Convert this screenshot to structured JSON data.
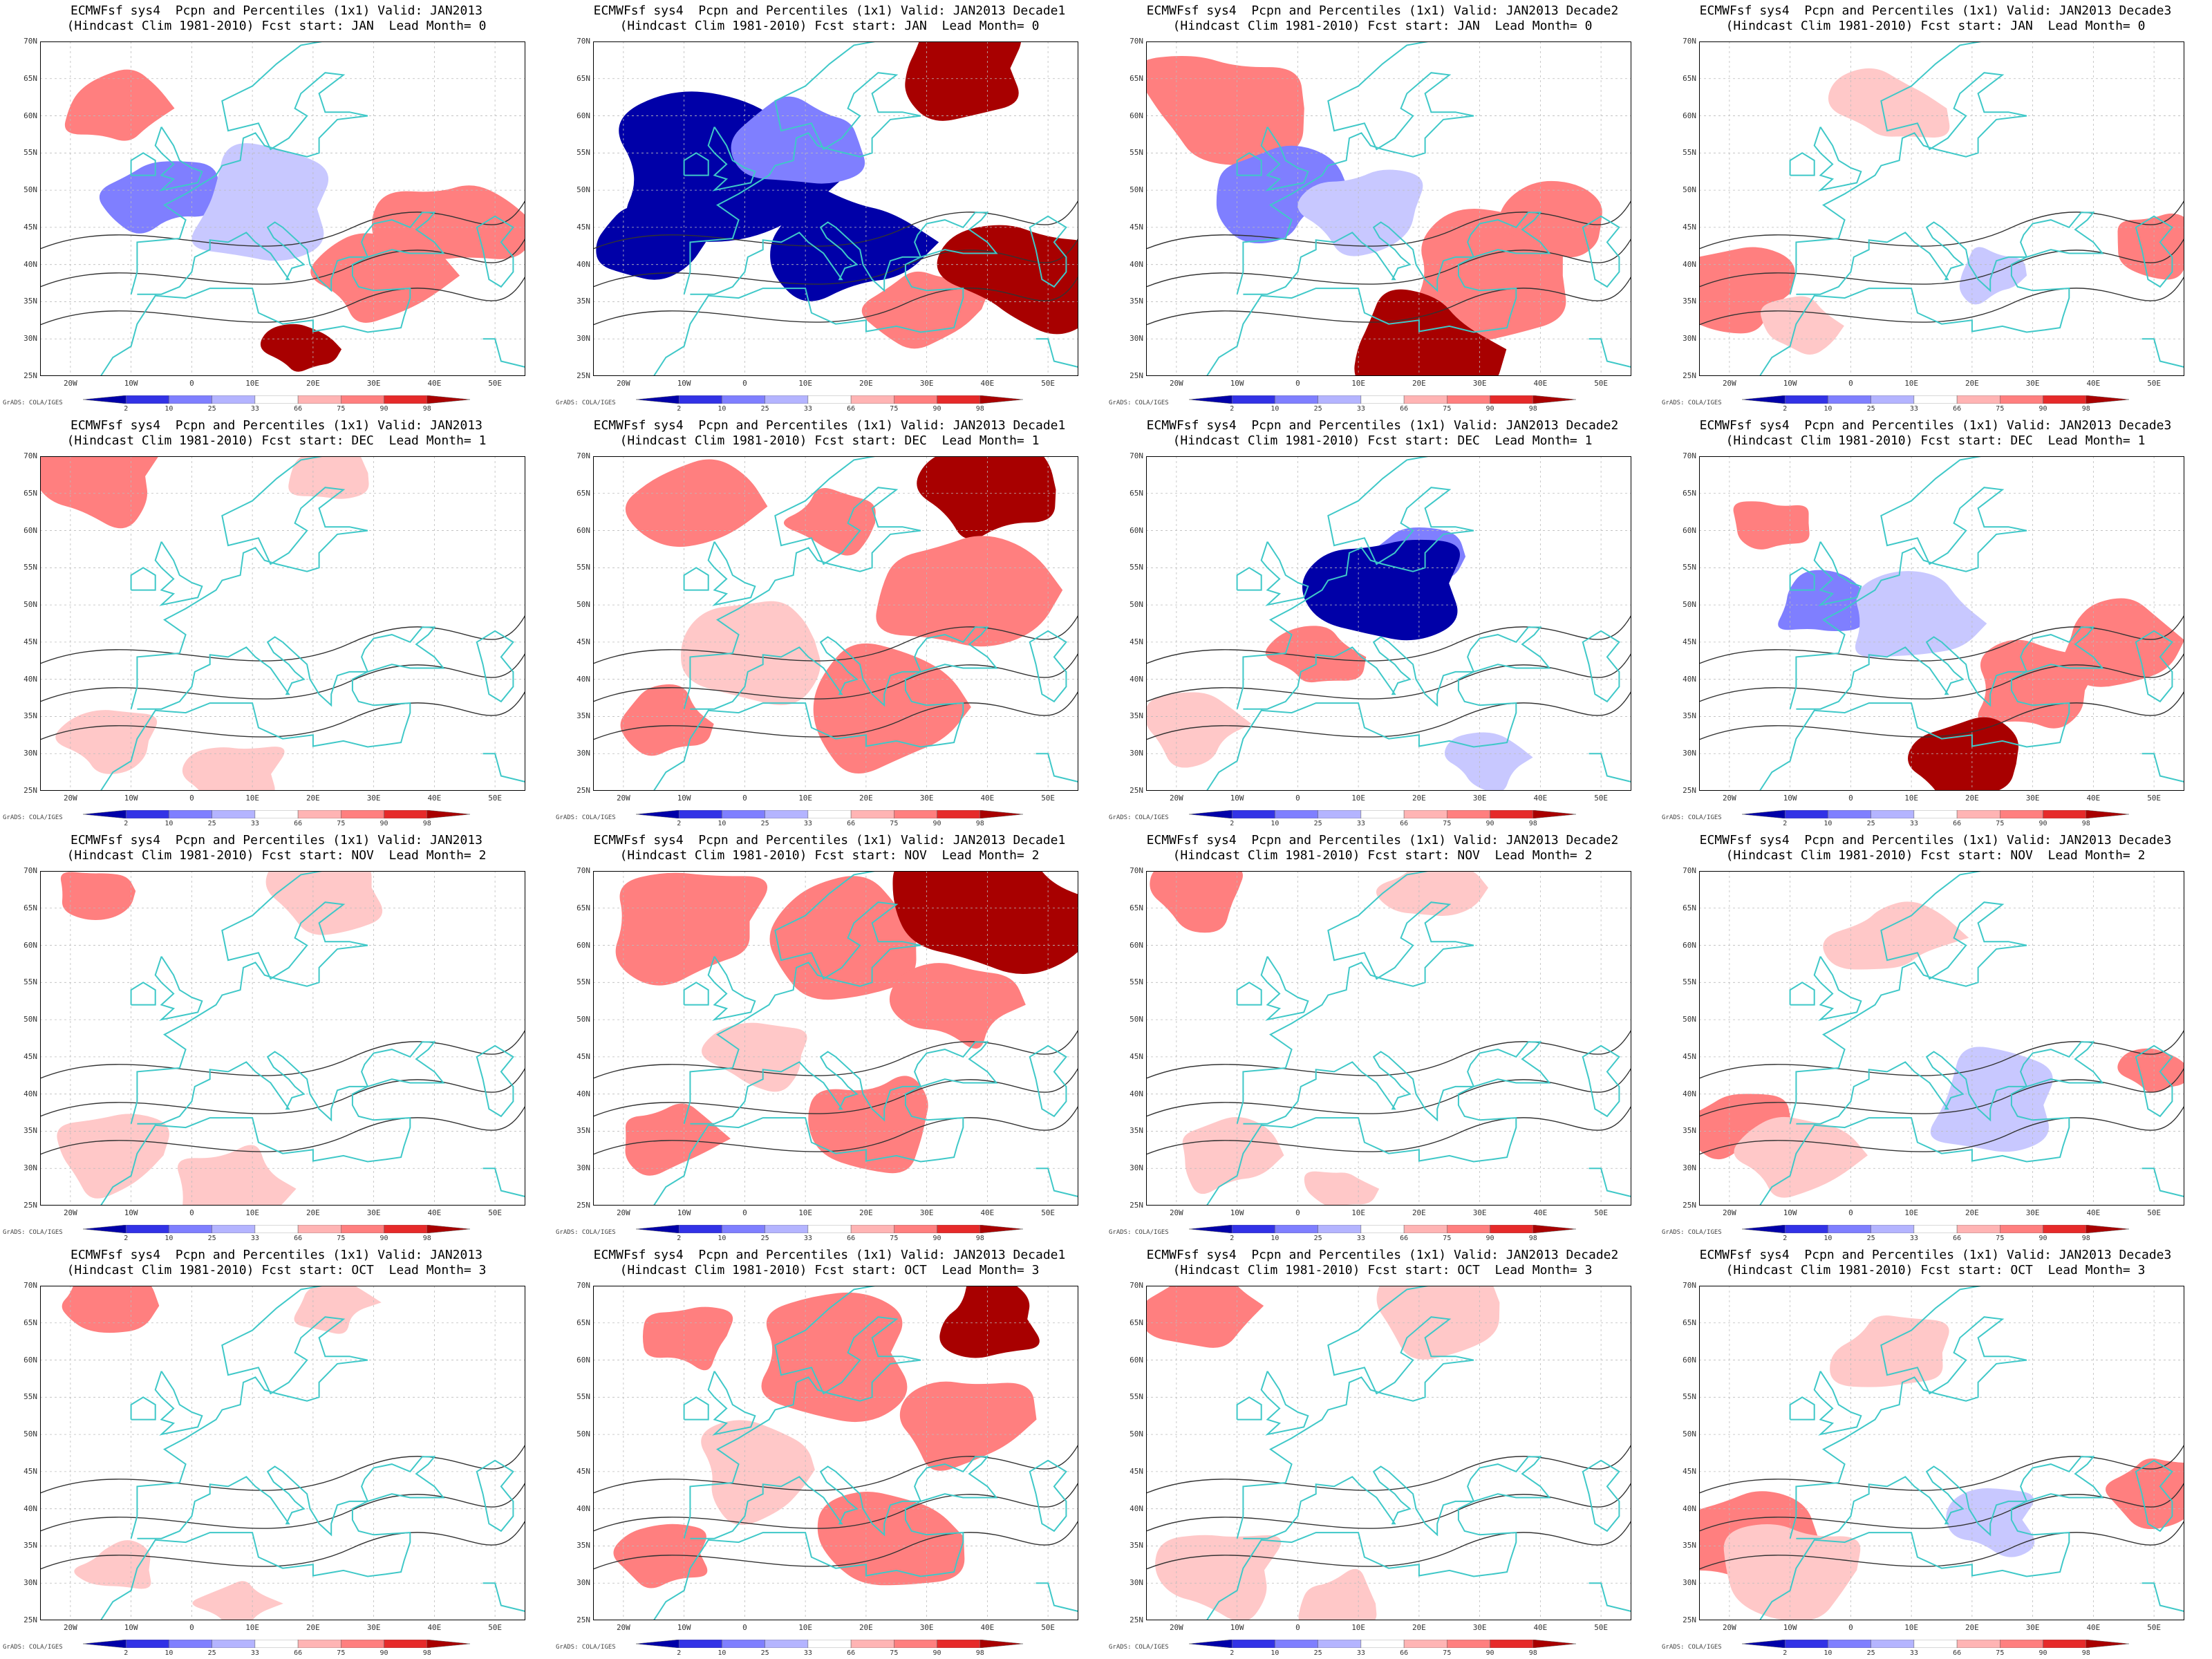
{
  "panels": [
    {
      "title_line1": "ECMWFsf sys4  Pcpn and Percentiles (1x1) Valid: JAN2013",
      "title_line2": "(Hindcast Clim 1981-2010) Fcst start: JAN  Lead Month= 0",
      "pattern": "mixed",
      "intensity": 0.5
    },
    {
      "title_line1": "ECMWFsf sys4  Pcpn and Percentiles (1x1) Valid: JAN2013 Decade1",
      "title_line2": "(Hindcast Clim 1981-2010) Fcst start: JAN  Lead Month= 0",
      "pattern": "dry-west",
      "intensity": 1.0
    },
    {
      "title_line1": "ECMWFsf sys4  Pcpn and Percentiles (1x1) Valid: JAN2013 Decade2",
      "title_line2": "(Hindcast Clim 1981-2010) Fcst start: JAN  Lead Month= 0",
      "pattern": "mixed",
      "intensity": 0.6
    },
    {
      "title_line1": "ECMWFsf sys4  Pcpn and Percentiles (1x1) Valid: JAN2013 Decade3",
      "title_line2": "(Hindcast Clim 1981-2010) Fcst start: JAN  Lead Month= 0",
      "pattern": "wet-southwest",
      "intensity": 0.35
    },
    {
      "title_line1": "ECMWFsf sys4  Pcpn and Percentiles (1x1) Valid: JAN2013",
      "title_line2": "(Hindcast Clim 1981-2010) Fcst start: DEC  Lead Month= 1",
      "pattern": "wet-light",
      "intensity": 0.25
    },
    {
      "title_line1": "ECMWFsf sys4  Pcpn and Percentiles (1x1) Valid: JAN2013 Decade1",
      "title_line2": "(Hindcast Clim 1981-2010) Fcst start: DEC  Lead Month= 1",
      "pattern": "wet-north",
      "intensity": 0.6
    },
    {
      "title_line1": "ECMWFsf sys4  Pcpn and Percentiles (1x1) Valid: JAN2013 Decade2",
      "title_line2": "(Hindcast Clim 1981-2010) Fcst start: DEC  Lead Month= 1",
      "pattern": "dry-central",
      "intensity": 0.45
    },
    {
      "title_line1": "ECMWFsf sys4  Pcpn and Percentiles (1x1) Valid: JAN2013 Decade3",
      "title_line2": "(Hindcast Clim 1981-2010) Fcst start: DEC  Lead Month= 1",
      "pattern": "mixed",
      "intensity": 0.4
    },
    {
      "title_line1": "ECMWFsf sys4  Pcpn and Percentiles (1x1) Valid: JAN2013",
      "title_line2": "(Hindcast Clim 1981-2010) Fcst start: NOV  Lead Month= 2",
      "pattern": "wet-light",
      "intensity": 0.2
    },
    {
      "title_line1": "ECMWFsf sys4  Pcpn and Percentiles (1x1) Valid: JAN2013 Decade1",
      "title_line2": "(Hindcast Clim 1981-2010) Fcst start: NOV  Lead Month= 2",
      "pattern": "wet-north",
      "intensity": 0.75
    },
    {
      "title_line1": "ECMWFsf sys4  Pcpn and Percentiles (1x1) Valid: JAN2013 Decade2",
      "title_line2": "(Hindcast Clim 1981-2010) Fcst start: NOV  Lead Month= 2",
      "pattern": "wet-light",
      "intensity": 0.25
    },
    {
      "title_line1": "ECMWFsf sys4  Pcpn and Percentiles (1x1) Valid: JAN2013 Decade3",
      "title_line2": "(Hindcast Clim 1981-2010) Fcst start: NOV  Lead Month= 2",
      "pattern": "wet-southwest",
      "intensity": 0.3
    },
    {
      "title_line1": "ECMWFsf sys4  Pcpn and Percentiles (1x1) Valid: JAN2013",
      "title_line2": "(Hindcast Clim 1981-2010) Fcst start: OCT  Lead Month= 3",
      "pattern": "wet-light",
      "intensity": 0.2
    },
    {
      "title_line1": "ECMWFsf sys4  Pcpn and Percentiles (1x1) Valid: JAN2013 Decade1",
      "title_line2": "(Hindcast Clim 1981-2010) Fcst start: OCT  Lead Month= 3",
      "pattern": "wet-north",
      "intensity": 0.6
    },
    {
      "title_line1": "ECMWFsf sys4  Pcpn and Percentiles (1x1) Valid: JAN2013 Decade2",
      "title_line2": "(Hindcast Clim 1981-2010) Fcst start: OCT  Lead Month= 3",
      "pattern": "wet-light",
      "intensity": 0.3
    },
    {
      "title_line1": "ECMWFsf sys4  Pcpn and Percentiles (1x1) Valid: JAN2013 Decade3",
      "title_line2": "(Hindcast Clim 1981-2010) Fcst start: OCT  Lead Month= 3",
      "pattern": "wet-southwest",
      "intensity": 0.35
    }
  ],
  "lat_labels": [
    "70N",
    "65N",
    "60N",
    "55N",
    "50N",
    "45N",
    "40N",
    "35N",
    "30N",
    "25N"
  ],
  "lon_labels": [
    "20W",
    "10W",
    "0",
    "10E",
    "20E",
    "30E",
    "40E",
    "50E"
  ],
  "colorbar": {
    "labels": [
      "2",
      "10",
      "25",
      "33",
      "66",
      "75",
      "90",
      "98"
    ],
    "colors": [
      "#0000a8",
      "#3232e6",
      "#7f7fff",
      "#b4b4ff",
      "#ffffff",
      "#ffb4b4",
      "#ff7f7f",
      "#e62a2a",
      "#a80000"
    ]
  },
  "credit": "GrADS: COLA/IGES",
  "colors": {
    "coast": "#3fc8c8",
    "contour": "#333333",
    "dry_strong": "#0000a8",
    "dry": "#7f7fff",
    "dry_light": "#c8c8ff",
    "wet_light": "#ffc8c8",
    "wet": "#ff7f7f",
    "wet_strong": "#a80000"
  }
}
